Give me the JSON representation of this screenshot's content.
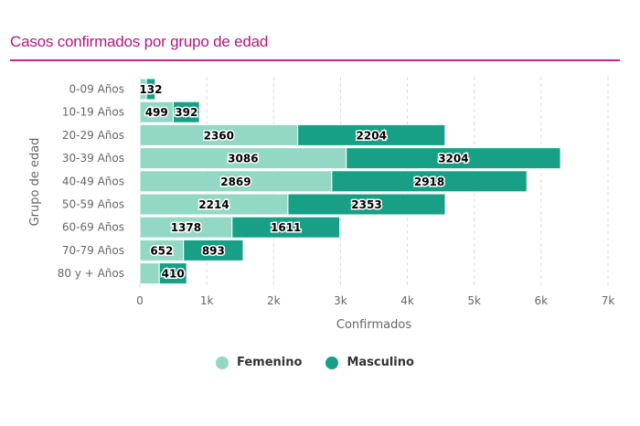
{
  "header": {
    "title": "Casos confirmados por grupo de edad"
  },
  "colors": {
    "title": "#b5177e",
    "femenino": "#93d8c4",
    "masculino": "#17a085",
    "grid": "#dddddd",
    "axis_text": "#666666"
  },
  "legend": [
    {
      "label": "Femenino",
      "color": "#93d8c4"
    },
    {
      "label": "Masculino",
      "color": "#17a085"
    }
  ],
  "chart_data": {
    "type": "bar",
    "orientation": "horizontal",
    "stacked": true,
    "title": "Casos confirmados por grupo de edad",
    "xlabel": "Confirmados",
    "ylabel": "Grupo de edad",
    "xlim": [
      0,
      7000
    ],
    "xticks": [
      0,
      1000,
      2000,
      3000,
      4000,
      5000,
      6000,
      7000
    ],
    "xtick_labels": [
      "0",
      "1k",
      "2k",
      "3k",
      "4k",
      "5k",
      "6k",
      "7k"
    ],
    "grid": true,
    "legend_position": "bottom",
    "categories": [
      "0-09 Años",
      "10-19 Años",
      "20-29 Años",
      "30-39 Años",
      "40-49 Años",
      "50-59 Años",
      "60-69 Años",
      "70-79 Años",
      "80 y + Años"
    ],
    "series": [
      {
        "name": "Femenino",
        "values": [
          97,
          499,
          2360,
          3086,
          2869,
          2214,
          1378,
          652,
          290
        ],
        "labels": [
          "",
          "499",
          "2360",
          "3086",
          "2869",
          "2214",
          "1378",
          "652",
          ""
        ]
      },
      {
        "name": "Masculino",
        "values": [
          132,
          392,
          2204,
          3204,
          2918,
          2353,
          1611,
          893,
          410
        ],
        "labels": [
          "132",
          "392",
          "2204",
          "3204",
          "2918",
          "2353",
          "1611",
          "893",
          "410"
        ]
      }
    ]
  }
}
